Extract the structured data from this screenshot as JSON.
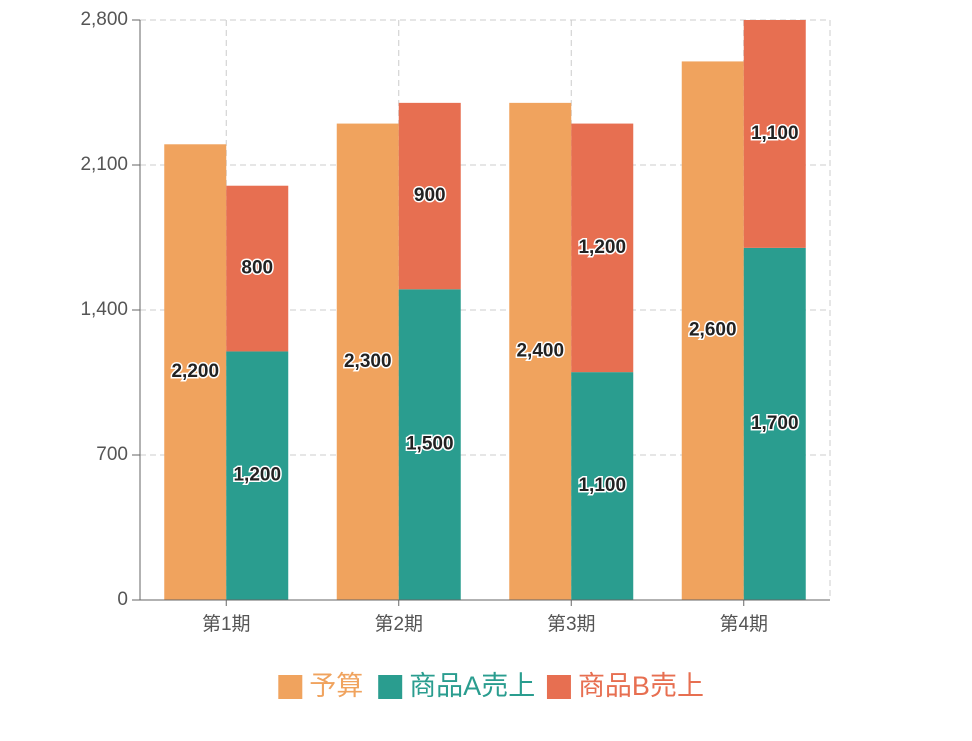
{
  "chart_data": {
    "type": "bar",
    "categories": [
      "第1期",
      "第2期",
      "第3期",
      "第4期"
    ],
    "series": [
      {
        "name": "予算",
        "color": "#f0a35e",
        "stacked": false,
        "values": [
          2200,
          2300,
          2400,
          2600
        ],
        "value_labels": [
          "2,200",
          "2,300",
          "2,400",
          "2,600"
        ]
      },
      {
        "name": "商品A売上",
        "color": "#2a9d8f",
        "stacked": true,
        "values": [
          1200,
          1500,
          1100,
          1700
        ],
        "value_labels": [
          "1,200",
          "1,500",
          "1,100",
          "1,700"
        ]
      },
      {
        "name": "商品B売上",
        "color": "#e76f51",
        "stacked": true,
        "values": [
          800,
          900,
          1200,
          1100
        ],
        "value_labels": [
          "800",
          "900",
          "1,200",
          "1,100"
        ]
      }
    ],
    "ylim": [
      0,
      2800
    ],
    "yticks": [
      0,
      700,
      {
        "value": 1400,
        "label": "1,400"
      },
      {
        "value": 2100,
        "label": "2,100"
      },
      {
        "value": 2800,
        "label": "2,800"
      }
    ],
    "grid": true,
    "legend": "bottom"
  }
}
